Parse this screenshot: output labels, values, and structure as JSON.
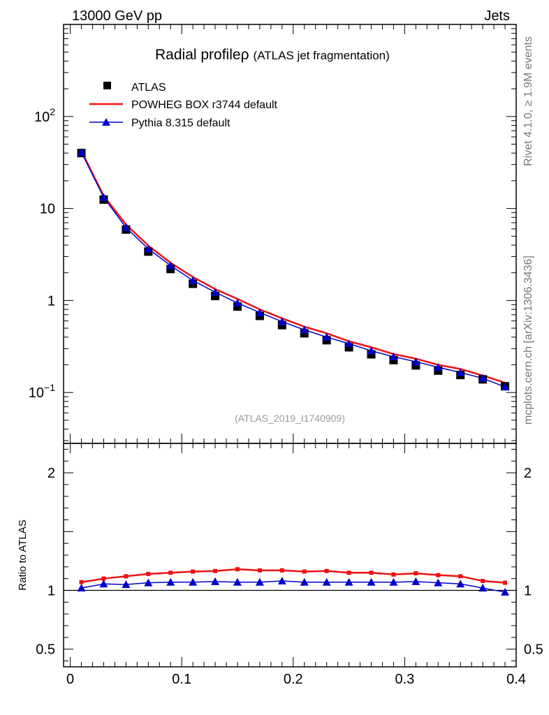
{
  "header": {
    "left": "13000 GeV pp",
    "right": "Jets"
  },
  "side_labels": {
    "rivet": "Rivet 4.1.0, ≥ 1.9M events",
    "mcplots": "mcplots.cern.ch [arXiv:1306.3436]"
  },
  "colors": {
    "atlas": "#000000",
    "powheg": "#ee1111",
    "pythia": "#0000cc"
  },
  "chart_data": [
    {
      "type": "scatter",
      "panel": "main",
      "title": "Radial profile",
      "title_symbol": "ρ",
      "subtitle": "(ATLAS jet fragmentation)",
      "analysis_id": "(ATLAS_2019_I1740909)",
      "yscale": "log",
      "xlim": [
        -0.006,
        0.4
      ],
      "ylim": [
        0.028,
        1000
      ],
      "yticks": [
        {
          "value": 0.1,
          "base": "10",
          "exp": "−1"
        },
        {
          "value": 1,
          "base": "1",
          "exp": ""
        },
        {
          "value": 10,
          "base": "10",
          "exp": ""
        },
        {
          "value": 100,
          "base": "10",
          "exp": "2"
        }
      ],
      "legend_position": "top-left",
      "x": [
        0.01,
        0.03,
        0.05,
        0.07,
        0.09,
        0.11,
        0.13,
        0.15,
        0.17,
        0.19,
        0.21,
        0.23,
        0.25,
        0.27,
        0.29,
        0.31,
        0.33,
        0.35,
        0.37,
        0.39
      ],
      "series": [
        {
          "name": "ATLAS",
          "style": "square-markers",
          "values": [
            40.0,
            12.5,
            5.9,
            3.4,
            2.2,
            1.52,
            1.12,
            0.86,
            0.68,
            0.54,
            0.44,
            0.37,
            0.31,
            0.26,
            0.225,
            0.197,
            0.173,
            0.155,
            0.139,
            0.117
          ]
        },
        {
          "name": "POWHEG BOX r3744 default",
          "style": "line",
          "values": [
            42.0,
            13.7,
            6.7,
            3.95,
            2.57,
            1.8,
            1.33,
            1.04,
            0.8,
            0.64,
            0.52,
            0.44,
            0.36,
            0.31,
            0.262,
            0.233,
            0.2,
            0.18,
            0.153,
            0.128
          ]
        },
        {
          "name": "Pythia 8.315 default",
          "style": "triangle-markers",
          "values": [
            40.8,
            13.2,
            6.2,
            3.65,
            2.4,
            1.65,
            1.23,
            0.94,
            0.74,
            0.59,
            0.48,
            0.4,
            0.34,
            0.284,
            0.245,
            0.216,
            0.188,
            0.165,
            0.143,
            0.115
          ]
        }
      ]
    },
    {
      "type": "line",
      "panel": "ratio",
      "ylabel": "Ratio to ATLAS",
      "xlim": [
        -0.006,
        0.4
      ],
      "ylim": [
        0.35,
        2.25
      ],
      "xticks": [
        0,
        0.1,
        0.2,
        0.3,
        0.4
      ],
      "xtick_labels": [
        "0",
        "0.1",
        "0.2",
        "0.3",
        "0.4"
      ],
      "yticks": [
        0.5,
        1,
        2
      ],
      "ytick_labels": [
        "0.5",
        "1",
        "2"
      ],
      "reference_line": 1,
      "x": [
        0.01,
        0.03,
        0.05,
        0.07,
        0.09,
        0.11,
        0.13,
        0.15,
        0.17,
        0.19,
        0.21,
        0.23,
        0.25,
        0.27,
        0.29,
        0.31,
        0.33,
        0.35,
        0.37,
        0.39
      ],
      "series": [
        {
          "name": "POWHEG BOX r3744 default",
          "values": [
            1.07,
            1.1,
            1.12,
            1.14,
            1.15,
            1.16,
            1.165,
            1.18,
            1.17,
            1.17,
            1.16,
            1.165,
            1.15,
            1.15,
            1.135,
            1.145,
            1.13,
            1.12,
            1.08,
            1.065
          ]
        },
        {
          "name": "Pythia 8.315 default",
          "values": [
            1.02,
            1.055,
            1.05,
            1.065,
            1.07,
            1.07,
            1.075,
            1.07,
            1.07,
            1.08,
            1.07,
            1.07,
            1.07,
            1.07,
            1.07,
            1.075,
            1.065,
            1.055,
            1.02,
            0.985
          ]
        }
      ]
    }
  ]
}
